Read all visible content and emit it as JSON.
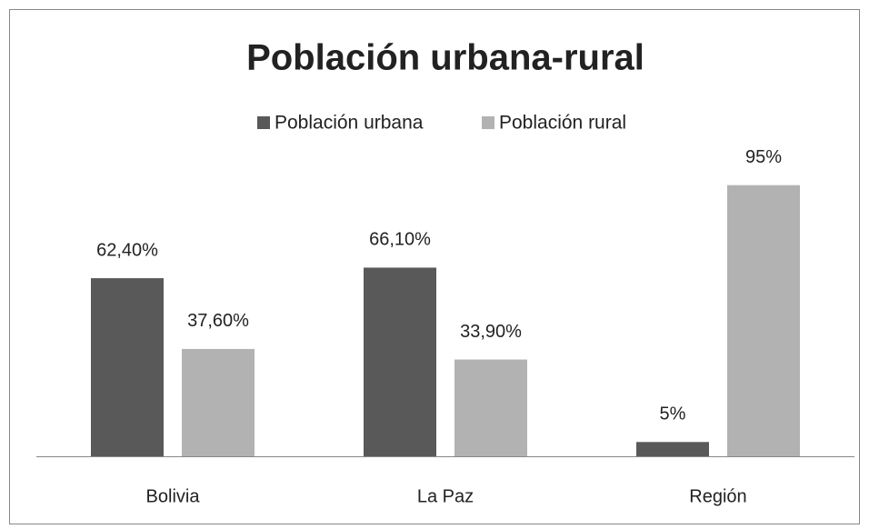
{
  "chart_data": {
    "type": "bar",
    "title": "Población urbana-rural",
    "categories": [
      "Bolivia",
      "La Paz",
      "Región"
    ],
    "series": [
      {
        "name": "Población urbana",
        "color": "#595959",
        "values": [
          62.4,
          66.1,
          5
        ],
        "value_labels": [
          "62,40%",
          "66,10%",
          "5%"
        ]
      },
      {
        "name": "Población rural",
        "color": "#b2b2b2",
        "values": [
          37.6,
          33.9,
          95
        ],
        "value_labels": [
          "37,60%",
          "33,90%",
          "95%"
        ]
      }
    ],
    "ylim": [
      0,
      100
    ],
    "legend": "top"
  }
}
